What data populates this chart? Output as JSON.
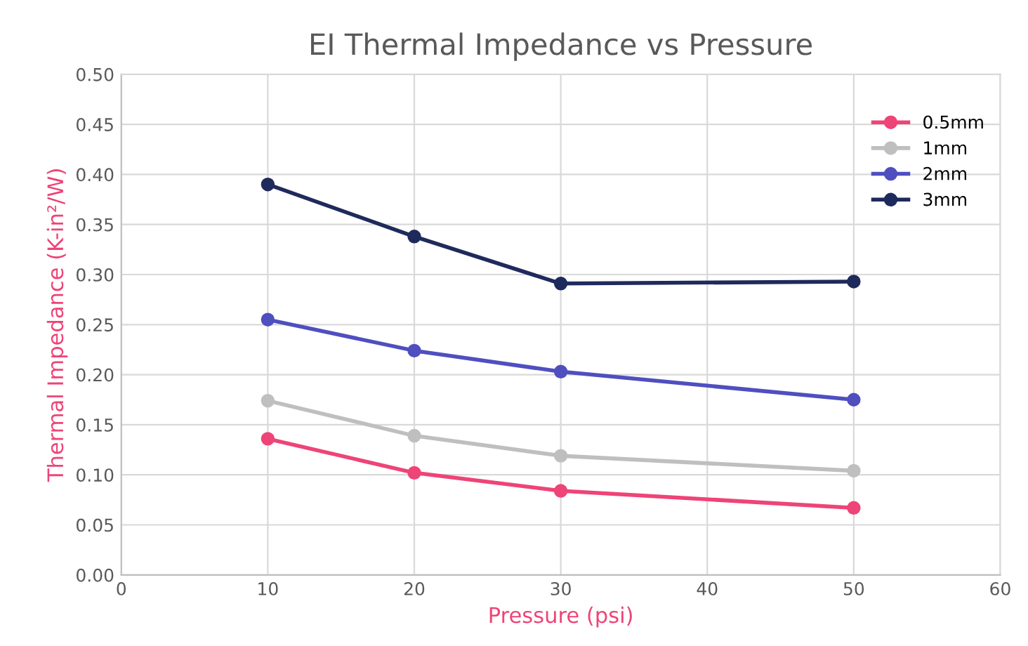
{
  "chart_data": {
    "type": "line",
    "title": "EI Thermal Impedance vs Pressure",
    "xlabel": "Pressure (psi)",
    "ylabel": "Thermal Impedance (K-in²/W)",
    "x": [
      10,
      20,
      30,
      50
    ],
    "series": [
      {
        "name": "0.5mm",
        "color": "#ee4477",
        "values": [
          0.136,
          0.102,
          0.084,
          0.067
        ]
      },
      {
        "name": "1mm",
        "color": "#bfbfbf",
        "values": [
          0.174,
          0.139,
          0.119,
          0.104
        ]
      },
      {
        "name": "2mm",
        "color": "#4f4fc0",
        "values": [
          0.255,
          0.224,
          0.203,
          0.175
        ]
      },
      {
        "name": "3mm",
        "color": "#1f2a5c",
        "values": [
          0.39,
          0.338,
          0.291,
          0.293
        ]
      }
    ],
    "xlim": [
      0,
      60
    ],
    "xticks": [
      0,
      10,
      20,
      30,
      40,
      50,
      60
    ],
    "ylim": [
      0,
      0.5
    ],
    "yticks": [
      {
        "value": 0,
        "label": "0.00"
      },
      {
        "value": 0.05,
        "label": "0.05"
      },
      {
        "value": 0.1,
        "label": "0.10"
      },
      {
        "value": 0.15,
        "label": "0.15"
      },
      {
        "value": 0.2,
        "label": "0.20"
      },
      {
        "value": 0.25,
        "label": "0.25"
      },
      {
        "value": 0.3,
        "label": "0.30"
      },
      {
        "value": 0.35,
        "label": "0.35"
      },
      {
        "value": 0.4,
        "label": "0.40"
      },
      {
        "value": 0.45,
        "label": "0.45"
      },
      {
        "value": 0.5,
        "label": "0.50"
      }
    ],
    "grid": true,
    "legend": "top right",
    "marker": "circle",
    "line_style": "solid"
  }
}
